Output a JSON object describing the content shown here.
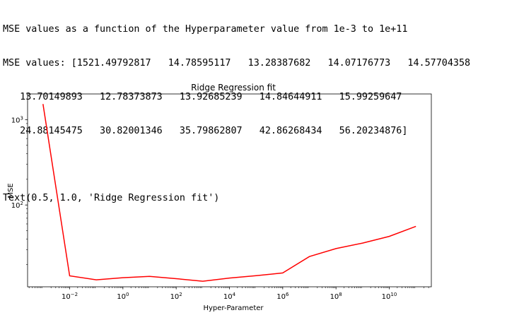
{
  "output": {
    "line1": "MSE values as a function of the Hyperparameter value from 1e-3 to 1e+11",
    "line2": "MSE values: [1521.49792817   14.78595117   13.28387682   14.07176773   14.57704358",
    "line3": "   13.70149893   12.78373873   13.92685239   14.84644911   15.99259647",
    "line4": "   24.88145475   30.82001346   35.79862807   42.86268434   56.20234876]",
    "line5": "Text(0.5, 1.0, 'Ridge Regression fit')"
  },
  "chart_data": {
    "type": "line",
    "title": "Ridge Regression fit",
    "xlabel": "Hyper-Parameter",
    "ylabel": "MSE",
    "xscale": "log",
    "yscale": "log",
    "x": [
      0.001,
      0.01,
      0.1,
      1,
      10,
      100,
      1000,
      10000,
      100000,
      1000000,
      10000000,
      100000000,
      1000000000,
      10000000000,
      100000000000
    ],
    "series": [
      {
        "color": "#ff0000",
        "values": [
          1521.49792817,
          14.78595117,
          13.28387682,
          14.07176773,
          14.57704358,
          13.70149893,
          12.78373873,
          13.92685239,
          14.84644911,
          15.99259647,
          24.88145475,
          30.82001346,
          35.79862807,
          42.86268434,
          56.20234876
        ]
      }
    ],
    "xticks": [
      {
        "value": 0.01,
        "base": "10",
        "exp": "−2"
      },
      {
        "value": 1,
        "base": "10",
        "exp": "0"
      },
      {
        "value": 100,
        "base": "10",
        "exp": "2"
      },
      {
        "value": 10000,
        "base": "10",
        "exp": "4"
      },
      {
        "value": 1000000,
        "base": "10",
        "exp": "6"
      },
      {
        "value": 100000000,
        "base": "10",
        "exp": "8"
      },
      {
        "value": 10000000000,
        "base": "10",
        "exp": "10"
      }
    ],
    "yticks": [
      {
        "value": 100,
        "base": "10",
        "exp": "2"
      },
      {
        "value": 1000,
        "base": "10",
        "exp": "3"
      }
    ],
    "xlim": [
      0.000263,
      380000000000
    ],
    "ylim": [
      11.0,
      2000.0
    ],
    "grid": false,
    "legend": "none"
  }
}
